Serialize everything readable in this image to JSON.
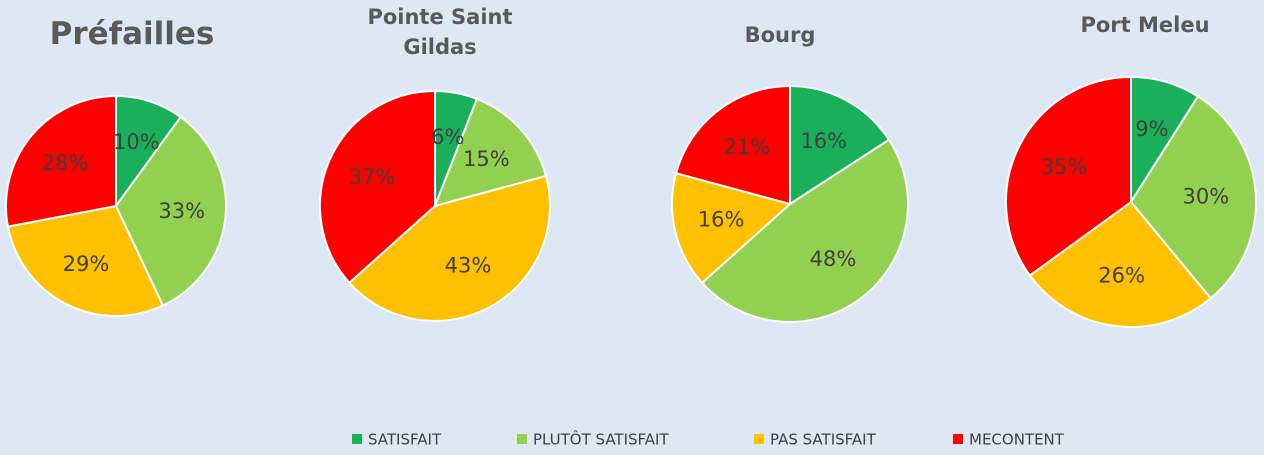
{
  "chart_data": [
    {
      "type": "pie",
      "title": "Préfailles",
      "categories": [
        "SATISFAIT",
        "PLUTÔT SATISFAIT",
        "PAS SATISFAIT",
        "MECONTENT"
      ],
      "values": [
        10,
        33,
        29,
        28
      ],
      "colors": [
        "#1aaf5a",
        "#92d050",
        "#ffc000",
        "#ff0000"
      ]
    },
    {
      "type": "pie",
      "title": "Pointe Saint Gildas",
      "categories": [
        "SATISFAIT",
        "PLUTÔT SATISFAIT",
        "PAS SATISFAIT",
        "MECONTENT"
      ],
      "values": [
        6,
        15,
        43,
        37
      ],
      "colors": [
        "#1aaf5a",
        "#92d050",
        "#ffc000",
        "#ff0000"
      ]
    },
    {
      "type": "pie",
      "title": "Bourg",
      "categories": [
        "SATISFAIT",
        "PLUTÔT SATISFAIT",
        "PAS SATISFAIT",
        "MECONTENT"
      ],
      "values": [
        16,
        48,
        16,
        21
      ],
      "colors": [
        "#1aaf5a",
        "#92d050",
        "#ffc000",
        "#ff0000"
      ]
    },
    {
      "type": "pie",
      "title": "Port Meleu",
      "categories": [
        "SATISFAIT",
        "PLUTÔT SATISFAIT",
        "PAS SATISFAIT",
        "MECONTENT"
      ],
      "values": [
        9,
        30,
        26,
        35
      ],
      "colors": [
        "#1aaf5a",
        "#92d050",
        "#ffc000",
        "#ff0000"
      ]
    }
  ]
}
